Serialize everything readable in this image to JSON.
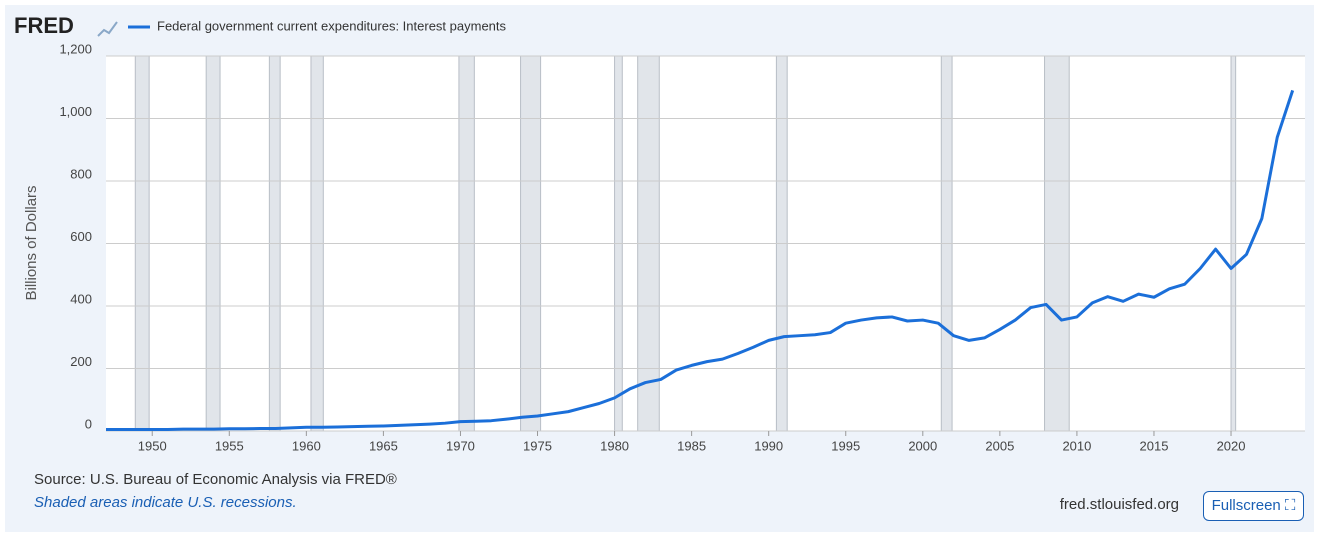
{
  "logo": "FRED",
  "controls": {
    "fullscreen": "Fullscreen"
  },
  "chart_data": {
    "type": "line",
    "y_label": "Billions of Dollars",
    "source": "Source: U.S. Bureau of Economic Analysis via FRED®",
    "note": "Shaded areas indicate U.S. recessions.",
    "site": "fred.stlouisfed.org",
    "x": [
      1947,
      1948,
      1949,
      1950,
      1951,
      1952,
      1953,
      1954,
      1955,
      1956,
      1957,
      1958,
      1959,
      1960,
      1961,
      1962,
      1963,
      1964,
      1965,
      1966,
      1967,
      1968,
      1969,
      1970,
      1971,
      1972,
      1973,
      1974,
      1975,
      1976,
      1977,
      1978,
      1979,
      1980,
      1981,
      1982,
      1983,
      1984,
      1985,
      1986,
      1987,
      1988,
      1989,
      1990,
      1991,
      1992,
      1993,
      1994,
      1995,
      1996,
      1997,
      1998,
      1999,
      2000,
      2001,
      2002,
      2003,
      2004,
      2005,
      2006,
      2007,
      2008,
      2009,
      2010,
      2011,
      2012,
      2013,
      2014,
      2015,
      2016,
      2017,
      2018,
      2019,
      2020,
      2021,
      2022,
      2023,
      2024
    ],
    "series": [
      {
        "name": "Federal government current expenditures: Interest payments",
        "color": "#1b6fd9",
        "values": [
          5,
          5,
          5,
          5,
          5,
          6,
          6,
          6,
          7,
          7,
          8,
          8,
          10,
          12,
          12,
          13,
          14,
          15,
          16,
          18,
          20,
          22,
          25,
          30,
          31,
          33,
          38,
          44,
          48,
          55,
          62,
          75,
          88,
          106,
          135,
          155,
          165,
          195,
          210,
          222,
          230,
          248,
          268,
          290,
          302,
          305,
          308,
          315,
          345,
          355,
          362,
          365,
          352,
          355,
          345,
          305,
          290,
          298,
          325,
          355,
          395,
          405,
          355,
          365,
          410,
          430,
          415,
          438,
          428,
          455,
          470,
          520,
          582,
          520,
          565,
          680,
          940,
          1090
        ]
      }
    ],
    "recessions": [
      [
        1948.9,
        1949.8
      ],
      [
        1953.5,
        1954.4
      ],
      [
        1957.6,
        1958.3
      ],
      [
        1960.3,
        1961.1
      ],
      [
        1969.9,
        1970.9
      ],
      [
        1973.9,
        1975.2
      ],
      [
        1980.0,
        1980.5
      ],
      [
        1981.5,
        1982.9
      ],
      [
        1990.5,
        1991.2
      ],
      [
        2001.2,
        2001.9
      ],
      [
        2007.9,
        2009.5
      ],
      [
        2020.0,
        2020.3
      ]
    ],
    "xlim": [
      1947,
      2024.8
    ],
    "xticks": [
      1950,
      1955,
      1960,
      1965,
      1970,
      1975,
      1980,
      1985,
      1990,
      1995,
      2000,
      2005,
      2010,
      2015,
      2020
    ],
    "ylim": [
      0,
      1200
    ],
    "yticks": [
      0,
      200,
      400,
      600,
      800,
      {
        "value": 1000,
        "label": "1,000"
      },
      {
        "value": 1200,
        "label": "1,200"
      }
    ],
    "grid": true
  }
}
